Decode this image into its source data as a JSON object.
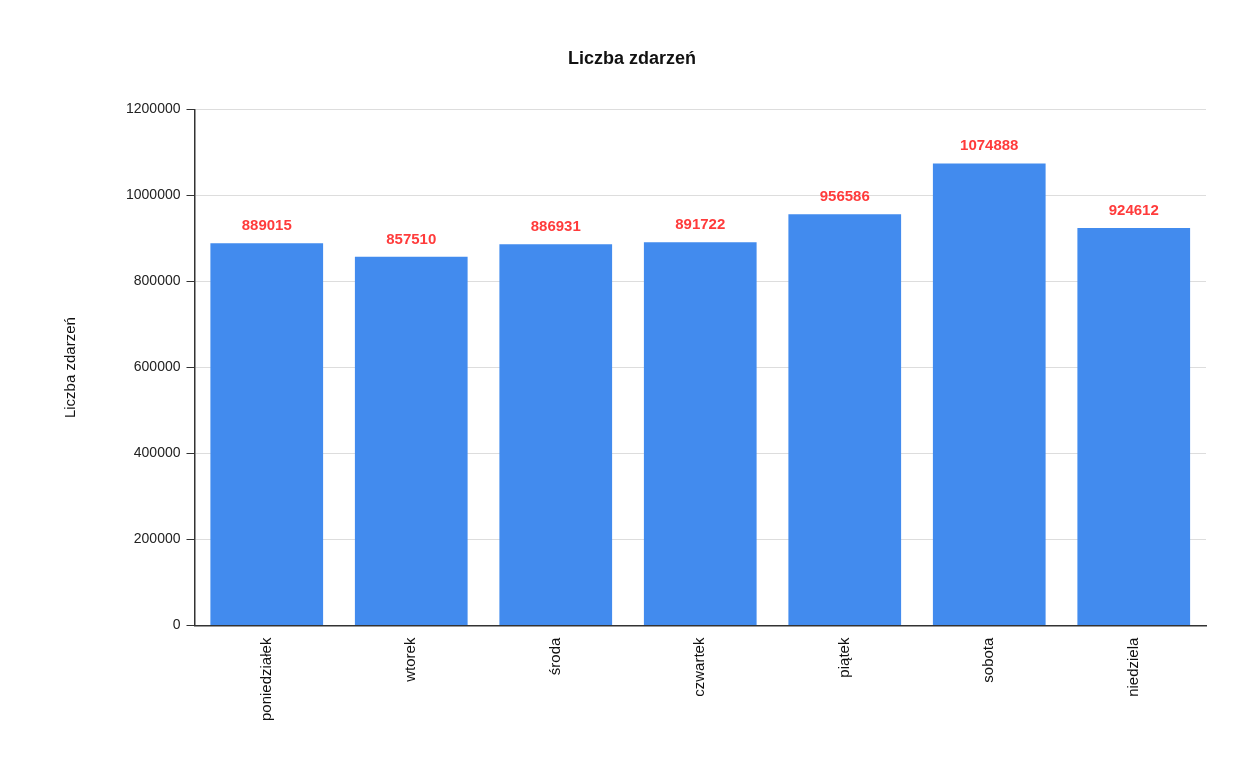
{
  "chart_data": {
    "type": "bar",
    "title": "Liczba zdarzeń",
    "ylabel": "Liczba zdarzeń",
    "categories": [
      "poniedziałek",
      "wtorek",
      "środa",
      "czwartek",
      "piątek",
      "sobota",
      "niedziela"
    ],
    "values": [
      889015,
      857510,
      886931,
      891722,
      956586,
      1074888,
      924612
    ],
    "color": "#428bee",
    "ylim": [
      0,
      1200000
    ],
    "yticks": [
      0,
      200000,
      400000,
      600000,
      800000,
      1000000,
      1200000
    ],
    "grid": "y",
    "legend": false,
    "data_labels": true
  }
}
